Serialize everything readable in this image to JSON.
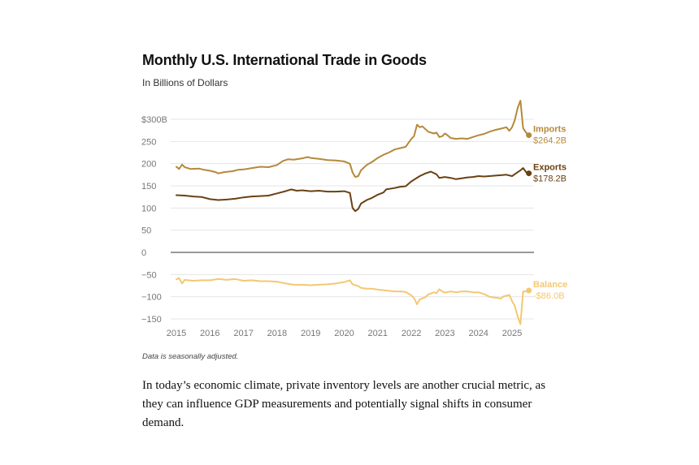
{
  "title": "Monthly U.S. International Trade in Goods",
  "subtitle": "In Billions of Dollars",
  "note": "Data is seasonally adjusted.",
  "paragraph": "In today’s economic climate, private inventory levels are another crucial metric, as they can influence GDP measurements and potentially signal shifts in consumer demand.",
  "chart_data": {
    "type": "line",
    "title": "Monthly U.S. International Trade in Goods",
    "ylabel": "In Billions of Dollars",
    "ylim": [
      -160,
      340
    ],
    "xlim": [
      2015.0,
      2025.5
    ],
    "yticks": [
      {
        "value": 300,
        "label": "$300B"
      },
      {
        "value": 250,
        "label": "250"
      },
      {
        "value": 200,
        "label": "200"
      },
      {
        "value": 150,
        "label": "150"
      },
      {
        "value": 100,
        "label": "100"
      },
      {
        "value": 50,
        "label": "50"
      },
      {
        "value": 0,
        "label": "0"
      },
      {
        "value": -50,
        "label": "−50"
      },
      {
        "value": -100,
        "label": "−100"
      },
      {
        "value": -150,
        "label": "−150"
      }
    ],
    "xticks": [
      {
        "value": 2015,
        "label": "2015"
      },
      {
        "value": 2016,
        "label": "2016"
      },
      {
        "value": 2017,
        "label": "2017"
      },
      {
        "value": 2018,
        "label": "2018"
      },
      {
        "value": 2019,
        "label": "2019"
      },
      {
        "value": 2020,
        "label": "2020"
      },
      {
        "value": 2021,
        "label": "2021"
      },
      {
        "value": 2022,
        "label": "2022"
      },
      {
        "value": 2023,
        "label": "2023"
      },
      {
        "value": 2024,
        "label": "2024"
      },
      {
        "value": 2025,
        "label": "2025"
      }
    ],
    "series": [
      {
        "name": "Imports",
        "end_label": "$264.2B",
        "color": "#b5893a",
        "points": [
          [
            2015.0,
            193
          ],
          [
            2015.08,
            188
          ],
          [
            2015.17,
            198
          ],
          [
            2015.25,
            192
          ],
          [
            2015.42,
            188
          ],
          [
            2015.67,
            189
          ],
          [
            2015.83,
            186
          ],
          [
            2016.0,
            184
          ],
          [
            2016.17,
            181
          ],
          [
            2016.25,
            178
          ],
          [
            2016.42,
            181
          ],
          [
            2016.67,
            183
          ],
          [
            2016.83,
            186
          ],
          [
            2017.0,
            187
          ],
          [
            2017.25,
            190
          ],
          [
            2017.5,
            193
          ],
          [
            2017.75,
            192
          ],
          [
            2018.0,
            197
          ],
          [
            2018.17,
            206
          ],
          [
            2018.33,
            210
          ],
          [
            2018.5,
            209
          ],
          [
            2018.75,
            212
          ],
          [
            2018.92,
            215
          ],
          [
            2019.0,
            213
          ],
          [
            2019.25,
            211
          ],
          [
            2019.5,
            208
          ],
          [
            2019.75,
            207
          ],
          [
            2020.0,
            205
          ],
          [
            2020.17,
            200
          ],
          [
            2020.25,
            180
          ],
          [
            2020.33,
            170
          ],
          [
            2020.42,
            172
          ],
          [
            2020.5,
            185
          ],
          [
            2020.67,
            197
          ],
          [
            2020.83,
            204
          ],
          [
            2021.0,
            213
          ],
          [
            2021.17,
            220
          ],
          [
            2021.33,
            225
          ],
          [
            2021.5,
            232
          ],
          [
            2021.67,
            235
          ],
          [
            2021.83,
            238
          ],
          [
            2022.0,
            256
          ],
          [
            2022.08,
            262
          ],
          [
            2022.17,
            288
          ],
          [
            2022.25,
            282
          ],
          [
            2022.33,
            284
          ],
          [
            2022.5,
            272
          ],
          [
            2022.67,
            268
          ],
          [
            2022.75,
            270
          ],
          [
            2022.83,
            260
          ],
          [
            2022.92,
            262
          ],
          [
            2023.0,
            268
          ],
          [
            2023.08,
            264
          ],
          [
            2023.17,
            258
          ],
          [
            2023.33,
            256
          ],
          [
            2023.5,
            257
          ],
          [
            2023.67,
            256
          ],
          [
            2023.83,
            260
          ],
          [
            2024.0,
            264
          ],
          [
            2024.17,
            267
          ],
          [
            2024.33,
            272
          ],
          [
            2024.5,
            276
          ],
          [
            2024.67,
            279
          ],
          [
            2024.83,
            282
          ],
          [
            2024.92,
            274
          ],
          [
            2025.0,
            282
          ],
          [
            2025.08,
            298
          ],
          [
            2025.17,
            326
          ],
          [
            2025.25,
            342
          ],
          [
            2025.33,
            280
          ],
          [
            2025.42,
            270
          ],
          [
            2025.5,
            264.2
          ]
        ]
      },
      {
        "name": "Exports",
        "end_label": "$178.2B",
        "color": "#6a4113",
        "points": [
          [
            2015.0,
            129
          ],
          [
            2015.25,
            128
          ],
          [
            2015.5,
            126
          ],
          [
            2015.75,
            125
          ],
          [
            2016.0,
            120
          ],
          [
            2016.25,
            118
          ],
          [
            2016.5,
            119
          ],
          [
            2016.75,
            121
          ],
          [
            2017.0,
            124
          ],
          [
            2017.25,
            126
          ],
          [
            2017.5,
            127
          ],
          [
            2017.75,
            128
          ],
          [
            2018.0,
            133
          ],
          [
            2018.25,
            138
          ],
          [
            2018.42,
            142
          ],
          [
            2018.58,
            139
          ],
          [
            2018.75,
            140
          ],
          [
            2019.0,
            138
          ],
          [
            2019.25,
            139
          ],
          [
            2019.5,
            137
          ],
          [
            2019.75,
            137
          ],
          [
            2020.0,
            138
          ],
          [
            2020.17,
            134
          ],
          [
            2020.25,
            100
          ],
          [
            2020.33,
            93
          ],
          [
            2020.42,
            98
          ],
          [
            2020.5,
            110
          ],
          [
            2020.67,
            118
          ],
          [
            2020.83,
            123
          ],
          [
            2021.0,
            130
          ],
          [
            2021.17,
            135
          ],
          [
            2021.25,
            142
          ],
          [
            2021.5,
            145
          ],
          [
            2021.67,
            148
          ],
          [
            2021.83,
            149
          ],
          [
            2022.0,
            160
          ],
          [
            2022.25,
            172
          ],
          [
            2022.42,
            178
          ],
          [
            2022.58,
            182
          ],
          [
            2022.75,
            176
          ],
          [
            2022.83,
            168
          ],
          [
            2023.0,
            170
          ],
          [
            2023.17,
            168
          ],
          [
            2023.33,
            165
          ],
          [
            2023.5,
            167
          ],
          [
            2023.67,
            169
          ],
          [
            2023.83,
            170
          ],
          [
            2024.0,
            172
          ],
          [
            2024.17,
            171
          ],
          [
            2024.33,
            172
          ],
          [
            2024.5,
            173
          ],
          [
            2024.67,
            174
          ],
          [
            2024.83,
            175
          ],
          [
            2025.0,
            172
          ],
          [
            2025.17,
            181
          ],
          [
            2025.25,
            185
          ],
          [
            2025.33,
            190
          ],
          [
            2025.42,
            181
          ],
          [
            2025.5,
            178.2
          ]
        ]
      },
      {
        "name": "Balance",
        "end_label": "-$86.0B",
        "color": "#f3c873",
        "points": [
          [
            2015.0,
            -61
          ],
          [
            2015.08,
            -58
          ],
          [
            2015.17,
            -70
          ],
          [
            2015.25,
            -62
          ],
          [
            2015.5,
            -64
          ],
          [
            2015.75,
            -63
          ],
          [
            2016.0,
            -63
          ],
          [
            2016.25,
            -60
          ],
          [
            2016.5,
            -62
          ],
          [
            2016.75,
            -60
          ],
          [
            2017.0,
            -64
          ],
          [
            2017.25,
            -63
          ],
          [
            2017.5,
            -65
          ],
          [
            2017.75,
            -65
          ],
          [
            2018.0,
            -66
          ],
          [
            2018.25,
            -70
          ],
          [
            2018.5,
            -73
          ],
          [
            2018.75,
            -73
          ],
          [
            2019.0,
            -74
          ],
          [
            2019.25,
            -73
          ],
          [
            2019.5,
            -72
          ],
          [
            2019.75,
            -70
          ],
          [
            2020.0,
            -67
          ],
          [
            2020.17,
            -63
          ],
          [
            2020.25,
            -72
          ],
          [
            2020.42,
            -76
          ],
          [
            2020.5,
            -80
          ],
          [
            2020.67,
            -82
          ],
          [
            2020.83,
            -82
          ],
          [
            2021.0,
            -84
          ],
          [
            2021.25,
            -86
          ],
          [
            2021.5,
            -88
          ],
          [
            2021.67,
            -88
          ],
          [
            2021.83,
            -89
          ],
          [
            2022.0,
            -97
          ],
          [
            2022.08,
            -103
          ],
          [
            2022.17,
            -117
          ],
          [
            2022.25,
            -106
          ],
          [
            2022.42,
            -101
          ],
          [
            2022.5,
            -95
          ],
          [
            2022.67,
            -90
          ],
          [
            2022.75,
            -92
          ],
          [
            2022.83,
            -83
          ],
          [
            2022.92,
            -88
          ],
          [
            2023.0,
            -91
          ],
          [
            2023.17,
            -88
          ],
          [
            2023.33,
            -90
          ],
          [
            2023.5,
            -88
          ],
          [
            2023.67,
            -88
          ],
          [
            2023.83,
            -90
          ],
          [
            2024.0,
            -90
          ],
          [
            2024.17,
            -94
          ],
          [
            2024.33,
            -100
          ],
          [
            2024.5,
            -102
          ],
          [
            2024.67,
            -104
          ],
          [
            2024.75,
            -99
          ],
          [
            2024.92,
            -96
          ],
          [
            2025.0,
            -110
          ],
          [
            2025.08,
            -120
          ],
          [
            2025.17,
            -145
          ],
          [
            2025.25,
            -162
          ],
          [
            2025.33,
            -88
          ],
          [
            2025.42,
            -88
          ],
          [
            2025.5,
            -86.0
          ]
        ]
      }
    ]
  }
}
